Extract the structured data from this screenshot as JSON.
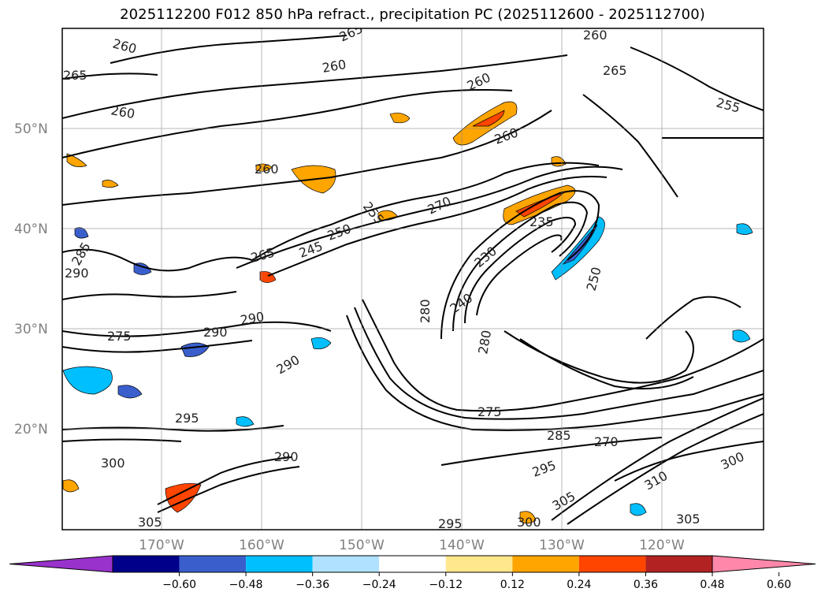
{
  "title": "2025112200 F012 850 hPa refract., precipitation PC (2025112600 - 2025112700)",
  "map": {
    "lat_labels": [
      "50°N",
      "40°N",
      "30°N",
      "20°N"
    ],
    "lon_labels": [
      "170°W",
      "160°W",
      "150°W",
      "140°W",
      "130°W",
      "120°W"
    ],
    "contour_labels": [
      "260",
      "260",
      "265",
      "260",
      "260",
      "265",
      "260",
      "255",
      "260",
      "270",
      "255",
      "250",
      "265",
      "245",
      "235",
      "230",
      "250",
      "240",
      "285",
      "290",
      "290",
      "275",
      "290",
      "290",
      "280",
      "280",
      "275",
      "295",
      "285",
      "290",
      "300",
      "295",
      "305",
      "310",
      "300",
      "305",
      "305",
      "300",
      "295",
      "270",
      "260",
      "265"
    ]
  },
  "colorbar": {
    "ticks": [
      "−0.60",
      "−0.48",
      "−0.36",
      "−0.24",
      "−0.12",
      "0.12",
      "0.24",
      "0.36",
      "0.48",
      "0.60"
    ],
    "colors": [
      "#9932CC",
      "#00008B",
      "#3A5FCD",
      "#00BFFF",
      "#B0E2FF",
      "#FFFFFF",
      "#FFE78C",
      "#FFA500",
      "#FF4500",
      "#B22222",
      "#FF88AA"
    ]
  }
}
